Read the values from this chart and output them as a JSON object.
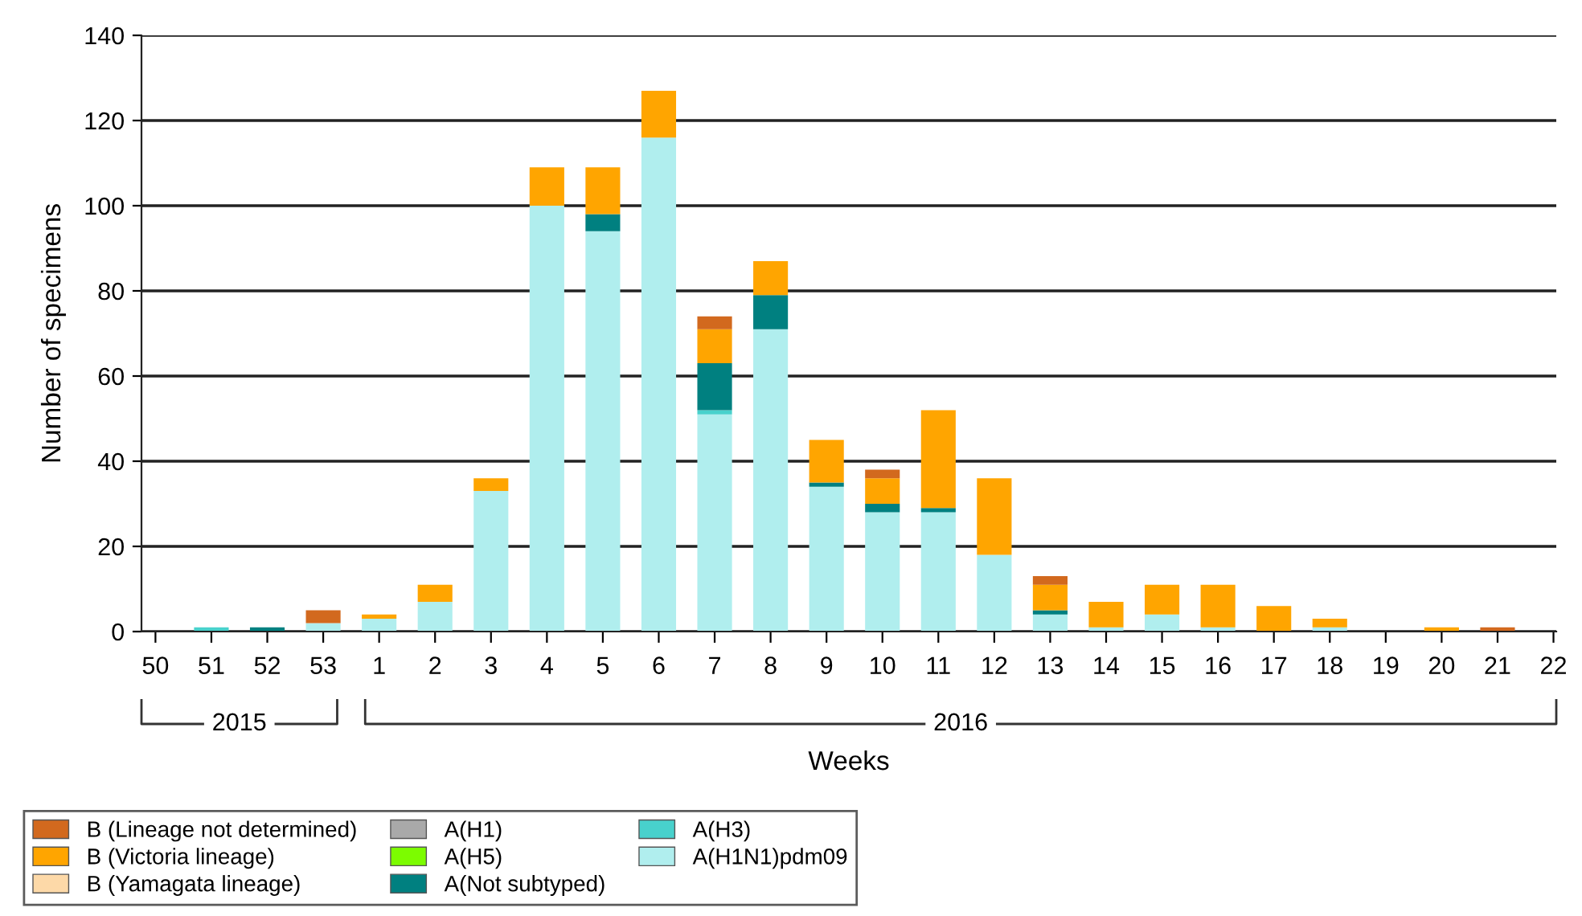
{
  "chart_data": {
    "type": "bar",
    "stacked": true,
    "xlabel": "Weeks",
    "ylabel": "Number of specimens",
    "categories": [
      "50",
      "51",
      "52",
      "53",
      "1",
      "2",
      "3",
      "4",
      "5",
      "6",
      "7",
      "8",
      "9",
      "10",
      "11",
      "12",
      "13",
      "14",
      "15",
      "16",
      "17",
      "18",
      "19",
      "20",
      "21",
      "22"
    ],
    "series": [
      {
        "name": "A(H1N1)pdm09",
        "color": "#b0eeee",
        "values": [
          0,
          0,
          0,
          2,
          3,
          7,
          33,
          100,
          94,
          116,
          51,
          71,
          34,
          28,
          28,
          18,
          4,
          1,
          4,
          1,
          0,
          1,
          0,
          0,
          0,
          0
        ]
      },
      {
        "name": "A(H3)",
        "color": "#48d1cc",
        "values": [
          0,
          1,
          0,
          0,
          0,
          0,
          0,
          0,
          0,
          0,
          1,
          0,
          0,
          0,
          0,
          0,
          0,
          0,
          0,
          0,
          0,
          0,
          0,
          0,
          0,
          0
        ]
      },
      {
        "name": "A(Not subtyped)",
        "color": "#008080",
        "values": [
          0,
          0,
          1,
          0,
          0,
          0,
          0,
          0,
          4,
          0,
          11,
          8,
          1,
          2,
          1,
          0,
          1,
          0,
          0,
          0,
          0,
          0,
          0,
          0,
          0,
          0
        ]
      },
      {
        "name": "A(H5)",
        "color": "#7cfc00",
        "values": [
          0,
          0,
          0,
          0,
          0,
          0,
          0,
          0,
          0,
          0,
          0,
          0,
          0,
          0,
          0,
          0,
          0,
          0,
          0,
          0,
          0,
          0,
          0,
          0,
          0,
          0
        ]
      },
      {
        "name": "A(H1)",
        "color": "#a9a9a9",
        "values": [
          0,
          0,
          0,
          0,
          0,
          0,
          0,
          0,
          0,
          0,
          0,
          0,
          0,
          0,
          0,
          0,
          0,
          0,
          0,
          0,
          0,
          0,
          0,
          0,
          0,
          0
        ]
      },
      {
        "name": "B (Yamagata lineage)",
        "color": "#fdd9a8",
        "values": [
          0,
          0,
          0,
          0,
          0,
          0,
          0,
          0,
          0,
          0,
          0,
          0,
          0,
          0,
          0,
          0,
          0,
          0,
          0,
          0,
          0,
          0,
          0,
          0,
          0,
          0
        ]
      },
      {
        "name": "B (Victoria lineage)",
        "color": "#ffa500",
        "values": [
          0,
          0,
          0,
          0,
          1,
          4,
          3,
          9,
          11,
          11,
          8,
          8,
          10,
          6,
          23,
          18,
          6,
          6,
          7,
          10,
          6,
          2,
          0,
          1,
          0,
          0
        ]
      },
      {
        "name": "B (Lineage not determined)",
        "color": "#d2691e",
        "values": [
          0,
          0,
          0,
          3,
          0,
          0,
          0,
          0,
          0,
          0,
          3,
          0,
          0,
          2,
          0,
          0,
          2,
          0,
          0,
          0,
          0,
          0,
          0,
          0,
          1,
          0
        ]
      }
    ],
    "ylim": [
      0,
      140
    ],
    "yticks": [
      0,
      20,
      40,
      60,
      80,
      100,
      120,
      140
    ],
    "grid": "y",
    "legend": "bottom left",
    "annotations": [
      "2015",
      "2016"
    ]
  }
}
